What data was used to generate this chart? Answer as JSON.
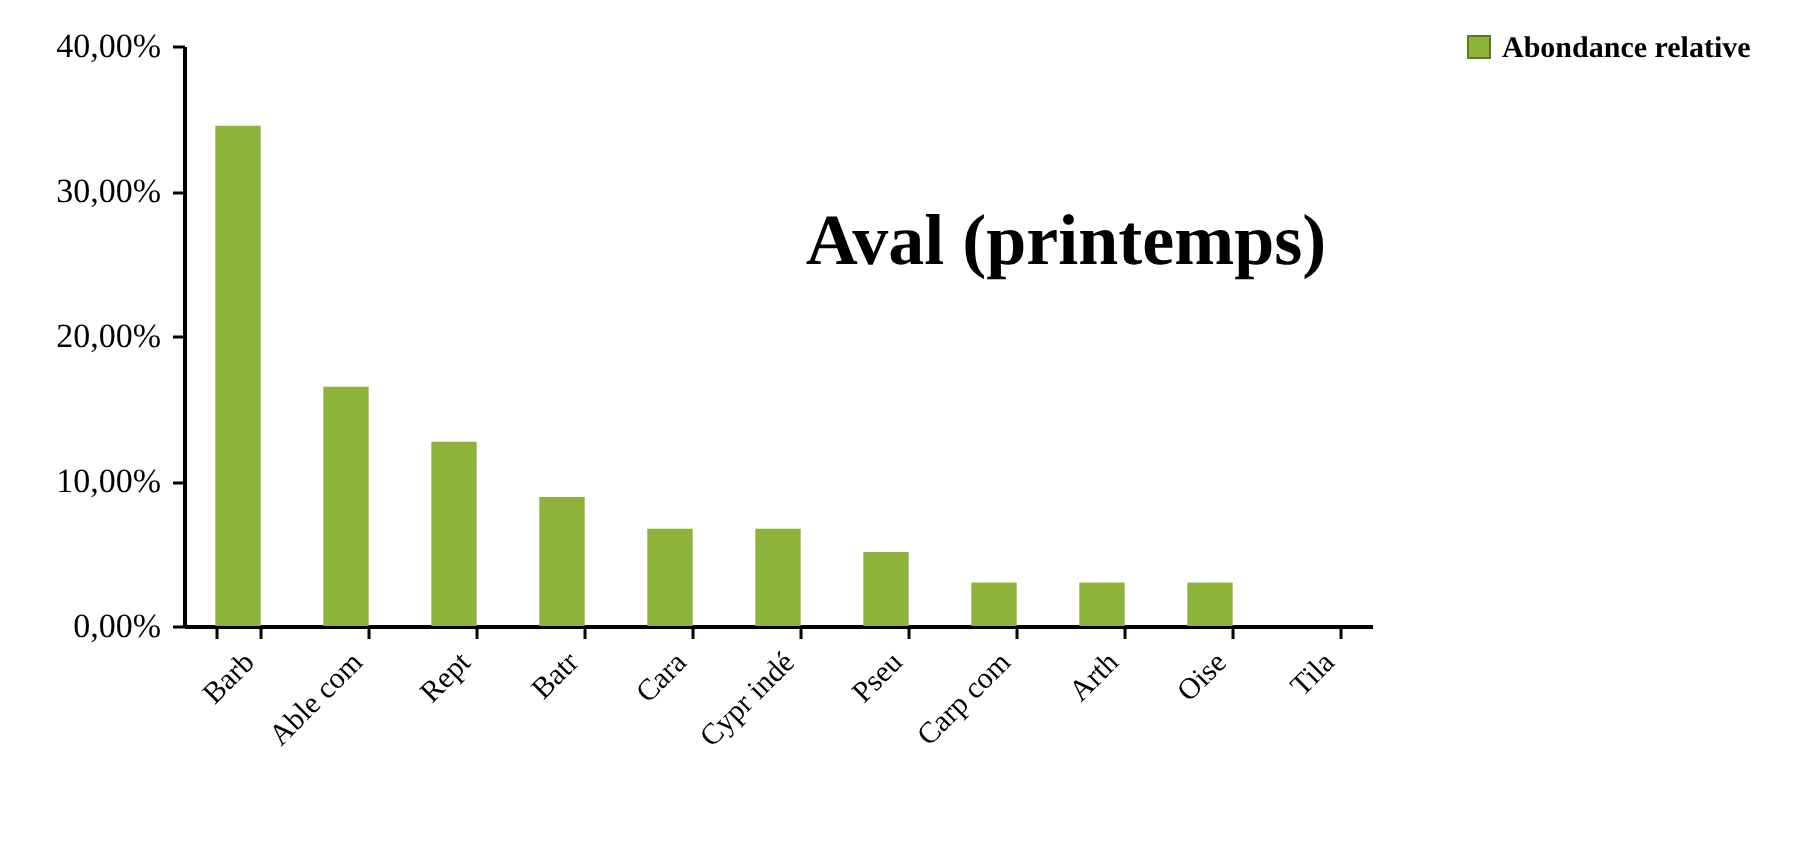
{
  "chart_data": {
    "type": "bar",
    "title": "Aval (printemps)",
    "categories": [
      "Barb",
      "Able com",
      "Rept",
      "Batr",
      "Cara",
      "Cypr indé",
      "Pseu",
      "Carp com",
      "Arth",
      "Oise",
      "Tila"
    ],
    "series": [
      {
        "name": "Abondance relative",
        "color": "#8db33a",
        "values": [
          34.5,
          16.5,
          12.7,
          8.9,
          6.7,
          6.7,
          5.1,
          3.0,
          3.0,
          3.0,
          0
        ]
      }
    ],
    "ylim": [
      0,
      40
    ],
    "yticks": [
      {
        "value": 0,
        "label": "0,00%"
      },
      {
        "value": 10,
        "label": "10,00%"
      },
      {
        "value": 20,
        "label": "20,00%"
      },
      {
        "value": 30,
        "label": "30,00%"
      },
      {
        "value": 40,
        "label": "40,00%"
      }
    ],
    "legend": "top right"
  }
}
